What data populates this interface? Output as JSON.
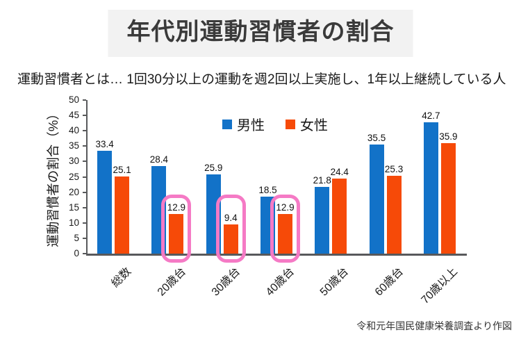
{
  "title": {
    "text": "年代別運動習慣者の割合"
  },
  "subtitle": {
    "text": "運動習慣者とは… 1回30分以上の運動を週2回以上実施し、1年以上継続している人"
  },
  "footer": {
    "text": "令和元年国民健康栄養調査より作図"
  },
  "colors": {
    "male_blue": "#1272c8",
    "female_orange": "#f64a08",
    "highlight_pink": "#f57ac5",
    "axis_gray": "#58595b",
    "title_bg": "#f2f2f2"
  },
  "chart_data": {
    "type": "bar",
    "title": "年代別運動習慣者の割合",
    "xlabel": "",
    "ylabel": "運動習慣者の割合（%）",
    "ylim": [
      0,
      50
    ],
    "yticks": [
      0,
      5,
      10,
      15,
      20,
      25,
      30,
      35,
      40,
      45,
      50
    ],
    "grid": false,
    "legend_position": "top-center",
    "categories": [
      "総数",
      "20歳台",
      "30歳台",
      "40歳台",
      "50歳台",
      "60歳台",
      "70歳以上"
    ],
    "series": [
      {
        "name": "男性",
        "color": "#1272c8",
        "values": [
          33.4,
          28.4,
          25.9,
          18.5,
          21.8,
          35.5,
          42.7
        ]
      },
      {
        "name": "女性",
        "color": "#f64a08",
        "values": [
          25.1,
          12.9,
          9.4,
          12.9,
          24.4,
          25.3,
          35.9
        ]
      }
    ],
    "highlights": {
      "series": "女性",
      "categories": [
        "20歳台",
        "30歳台",
        "40歳台"
      ],
      "color": "#f57ac5"
    }
  }
}
